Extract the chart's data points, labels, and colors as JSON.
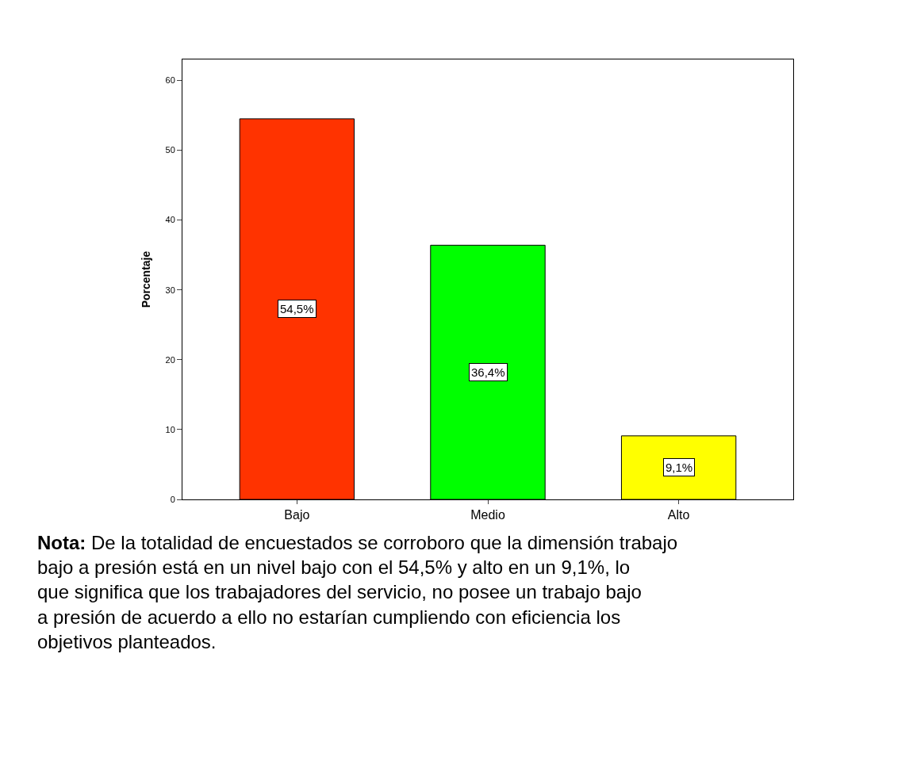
{
  "chart_data": {
    "type": "bar",
    "ylabel": "Porcentaje",
    "categories": [
      "Bajo",
      "Medio",
      "Alto"
    ],
    "values": [
      54.5,
      36.4,
      9.1
    ],
    "colors": [
      "#ff3300",
      "#00ff00",
      "#ffff00"
    ],
    "value_labels": [
      "54,5%",
      "36,4%",
      "9,1%"
    ],
    "ylim": [
      0,
      63
    ],
    "yticks": [
      0,
      10,
      20,
      30,
      40,
      50,
      60
    ],
    "legend": false,
    "annotations": [
      "Nota:",
      "De la totalidad de encuestados se corroboro que la dimensión trabajo bajo a presión está en un nivel bajo con el 54,5% y alto en un 9,1%, lo que significa que los trabajadores del servicio, no posee un trabajo bajo a presión de acuerdo a ello no estarían cumpliendo con eficiencia los objetivos planteados."
    ]
  }
}
